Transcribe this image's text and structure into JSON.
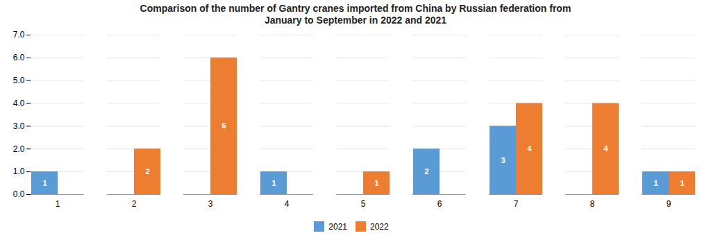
{
  "chart_data": {
    "type": "bar",
    "title": "Comparison of the number of Gantry cranes imported from China by Russian federation from\nJanuary to September in 2022 and 2021",
    "categories": [
      1,
      2,
      3,
      4,
      5,
      6,
      7,
      8,
      9
    ],
    "series": [
      {
        "name": "2021",
        "color": "#5B9BD5",
        "values": [
          1,
          0,
          0,
          1,
          0,
          2,
          3,
          0,
          1
        ],
        "value_labels": [
          "1",
          null,
          null,
          "1",
          null,
          "2",
          "3",
          null,
          "1"
        ]
      },
      {
        "name": "2022",
        "color": "#ED7D31",
        "values": [
          0,
          2,
          6,
          0,
          1,
          0,
          4,
          4,
          1
        ],
        "value_labels": [
          null,
          "2",
          "6",
          null,
          "1",
          null,
          "4",
          "4",
          "1"
        ]
      }
    ],
    "ylim": [
      0,
      7
    ],
    "yticks": [
      0,
      1,
      2,
      3,
      4,
      5,
      6,
      7
    ],
    "grid": true,
    "data_labels": true
  }
}
